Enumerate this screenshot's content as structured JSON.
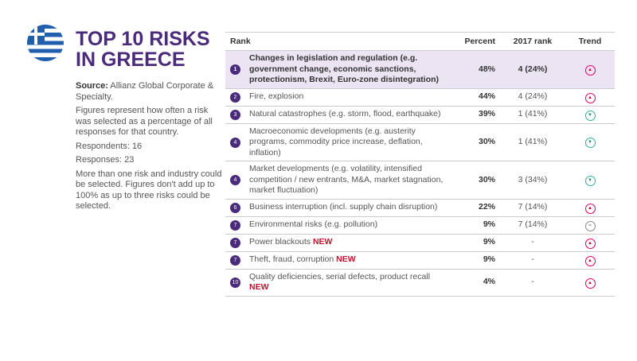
{
  "title": "TOP 10 RISKS IN GREECE",
  "side": {
    "source_label": "Source:",
    "source": "Allianz Global Corporate & Specialty.",
    "note": "Figures represent how often a risk was selected as a percentage of all responses for that country.",
    "respondents": "Respondents: 16",
    "responses": "Responses: 23",
    "disclaimer": "More than one risk and industry could be selected. Figures don't add up to 100% as up to three risks could be selected."
  },
  "headers": {
    "rank": "Rank",
    "percent": "Percent",
    "prev": "2017 rank",
    "trend": "Trend"
  },
  "new_label": "NEW",
  "rows": [
    {
      "rank": "1",
      "risk": "Changes in legislation and regulation (e.g. government change, economic sanctions, protectionism, Brexit, Euro-zone disintegration)",
      "percent": "48%",
      "prev": "4 (24%)",
      "trend": "up"
    },
    {
      "rank": "2",
      "risk": "Fire, explosion",
      "percent": "44%",
      "prev": "4 (24%)",
      "trend": "up"
    },
    {
      "rank": "3",
      "risk": "Natural catastrophes (e.g. storm, flood, earthquake)",
      "percent": "39%",
      "prev": "1 (41%)",
      "trend": "down"
    },
    {
      "rank": "4",
      "risk": "Macroeconomic developments (e.g. austerity programs, commodity price increase, deflation, inflation)",
      "percent": "30%",
      "prev": "1 (41%)",
      "trend": "down"
    },
    {
      "rank": "4",
      "risk": "Market developments (e.g. volatility, intensified competition / new entrants, M&A, market stagnation, market fluctuation)",
      "percent": "30%",
      "prev": "3 (34%)",
      "trend": "down"
    },
    {
      "rank": "6",
      "risk": "Business interruption (incl. supply chain disruption)",
      "percent": "22%",
      "prev": "7 (14%)",
      "trend": "up"
    },
    {
      "rank": "7",
      "risk": "Environmental risks (e.g. pollution)",
      "percent": "9%",
      "prev": "7 (14%)",
      "trend": "same"
    },
    {
      "rank": "7",
      "risk": "Power blackouts",
      "percent": "9%",
      "prev": "-",
      "trend": "up",
      "new": true
    },
    {
      "rank": "7",
      "risk": "Theft, fraud, corruption",
      "percent": "9%",
      "prev": "-",
      "trend": "up",
      "new": true
    },
    {
      "rank": "10",
      "risk": "Quality deficiencies, serial defects, product recall",
      "percent": "4%",
      "prev": "-",
      "trend": "up",
      "new": true
    }
  ]
}
